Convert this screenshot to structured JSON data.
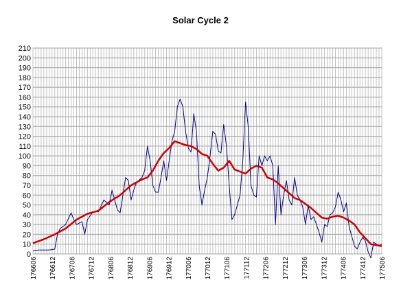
{
  "chart_data": {
    "type": "line",
    "title": "Solar Cycle 2",
    "xlabel": "",
    "ylabel": "",
    "ylim": [
      0,
      210
    ],
    "yticks": [
      0,
      10,
      20,
      30,
      40,
      50,
      60,
      70,
      80,
      90,
      100,
      110,
      120,
      130,
      140,
      150,
      160,
      170,
      180,
      190,
      200,
      210
    ],
    "grid": true,
    "legend": "none",
    "x_tick_labels": [
      "176606",
      "176612",
      "176706",
      "176712",
      "176806",
      "176812",
      "176906",
      "176912",
      "177006",
      "177012",
      "177106",
      "177112",
      "177206",
      "177212",
      "177306",
      "177312",
      "177406",
      "177412",
      "177506"
    ],
    "series": [
      {
        "color": "#000080",
        "width": 1,
        "points": [
          [
            0,
            3
          ],
          [
            2,
            4
          ],
          [
            4,
            4
          ],
          [
            6,
            4
          ],
          [
            8,
            5
          ],
          [
            9,
            20
          ],
          [
            10,
            26
          ],
          [
            12,
            30
          ],
          [
            14,
            42
          ],
          [
            15,
            35
          ],
          [
            16,
            30
          ],
          [
            18,
            33
          ],
          [
            19,
            20
          ],
          [
            20,
            35
          ],
          [
            22,
            43
          ],
          [
            24,
            43
          ],
          [
            26,
            55
          ],
          [
            28,
            50
          ],
          [
            29,
            65
          ],
          [
            30,
            55
          ],
          [
            31,
            45
          ],
          [
            32,
            42
          ],
          [
            33,
            60
          ],
          [
            34,
            78
          ],
          [
            35,
            75
          ],
          [
            36,
            55
          ],
          [
            37,
            65
          ],
          [
            38,
            73
          ],
          [
            40,
            78
          ],
          [
            41,
            85
          ],
          [
            42,
            110
          ],
          [
            43,
            95
          ],
          [
            44,
            70
          ],
          [
            45,
            63
          ],
          [
            46,
            63
          ],
          [
            47,
            78
          ],
          [
            48,
            95
          ],
          [
            49,
            75
          ],
          [
            50,
            95
          ],
          [
            51,
            115
          ],
          [
            52,
            125
          ],
          [
            53,
            150
          ],
          [
            54,
            158
          ],
          [
            55,
            150
          ],
          [
            56,
            125
          ],
          [
            57,
            108
          ],
          [
            58,
            104
          ],
          [
            59,
            143
          ],
          [
            60,
            125
          ],
          [
            61,
            70
          ],
          [
            62,
            50
          ],
          [
            63,
            65
          ],
          [
            64,
            78
          ],
          [
            65,
            100
          ],
          [
            66,
            125
          ],
          [
            67,
            122
          ],
          [
            68,
            105
          ],
          [
            69,
            103
          ],
          [
            70,
            132
          ],
          [
            71,
            110
          ],
          [
            72,
            70
          ],
          [
            73,
            35
          ],
          [
            74,
            40
          ],
          [
            75,
            50
          ],
          [
            76,
            60
          ],
          [
            77,
            95
          ],
          [
            78,
            155
          ],
          [
            79,
            130
          ],
          [
            80,
            70
          ],
          [
            81,
            60
          ],
          [
            82,
            58
          ],
          [
            83,
            100
          ],
          [
            84,
            90
          ],
          [
            85,
            100
          ],
          [
            86,
            95
          ],
          [
            87,
            100
          ],
          [
            88,
            90
          ],
          [
            89,
            30
          ],
          [
            90,
            90
          ],
          [
            91,
            40
          ],
          [
            92,
            60
          ],
          [
            93,
            75
          ],
          [
            94,
            55
          ],
          [
            95,
            50
          ],
          [
            96,
            78
          ],
          [
            97,
            60
          ],
          [
            98,
            55
          ],
          [
            99,
            48
          ],
          [
            100,
            30
          ],
          [
            101,
            50
          ],
          [
            102,
            35
          ],
          [
            103,
            38
          ],
          [
            104,
            30
          ],
          [
            105,
            22
          ],
          [
            106,
            12
          ],
          [
            107,
            30
          ],
          [
            108,
            28
          ],
          [
            109,
            40
          ],
          [
            110,
            42
          ],
          [
            111,
            48
          ],
          [
            112,
            63
          ],
          [
            113,
            55
          ],
          [
            114,
            43
          ],
          [
            115,
            52
          ],
          [
            116,
            28
          ],
          [
            117,
            18
          ],
          [
            118,
            8
          ],
          [
            119,
            5
          ],
          [
            120,
            12
          ],
          [
            121,
            17
          ],
          [
            122,
            13
          ],
          [
            123,
            2
          ],
          [
            124,
            -4
          ],
          [
            125,
            12
          ],
          [
            126,
            10
          ],
          [
            127,
            8
          ],
          [
            128,
            10
          ]
        ]
      },
      {
        "color": "#cc0000",
        "width": 2.5,
        "points": [
          [
            0,
            11
          ],
          [
            4,
            15
          ],
          [
            8,
            20
          ],
          [
            12,
            26
          ],
          [
            16,
            35
          ],
          [
            20,
            41
          ],
          [
            24,
            44
          ],
          [
            28,
            53
          ],
          [
            32,
            60
          ],
          [
            36,
            70
          ],
          [
            40,
            76
          ],
          [
            42,
            78
          ],
          [
            44,
            85
          ],
          [
            46,
            95
          ],
          [
            48,
            103
          ],
          [
            50,
            108
          ],
          [
            52,
            115
          ],
          [
            54,
            113
          ],
          [
            56,
            111
          ],
          [
            58,
            110
          ],
          [
            60,
            107
          ],
          [
            62,
            102
          ],
          [
            64,
            100
          ],
          [
            66,
            92
          ],
          [
            68,
            85
          ],
          [
            70,
            88
          ],
          [
            72,
            95
          ],
          [
            74,
            86
          ],
          [
            76,
            84
          ],
          [
            78,
            82
          ],
          [
            80,
            87
          ],
          [
            82,
            90
          ],
          [
            84,
            88
          ],
          [
            86,
            78
          ],
          [
            88,
            76
          ],
          [
            90,
            72
          ],
          [
            92,
            67
          ],
          [
            94,
            62
          ],
          [
            96,
            57
          ],
          [
            98,
            55
          ],
          [
            100,
            51
          ],
          [
            102,
            47
          ],
          [
            104,
            42
          ],
          [
            106,
            37
          ],
          [
            108,
            36
          ],
          [
            110,
            38
          ],
          [
            112,
            39
          ],
          [
            114,
            37
          ],
          [
            116,
            34
          ],
          [
            118,
            30
          ],
          [
            120,
            22
          ],
          [
            122,
            16
          ],
          [
            124,
            10
          ],
          [
            126,
            9
          ],
          [
            128,
            8
          ]
        ]
      }
    ]
  }
}
